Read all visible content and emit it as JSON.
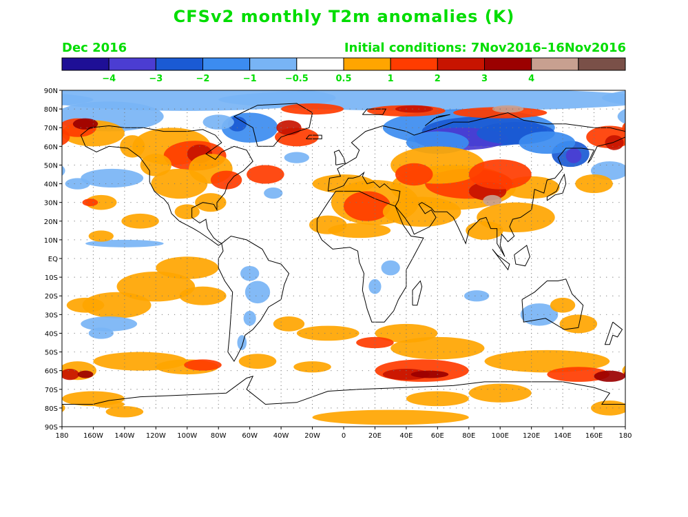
{
  "title": "CFSv2 monthly T2m anomalies (K)",
  "valid_month": "Dec 2016",
  "initial_conditions": "Initial conditions: 7Nov2016–16Nov2016",
  "label_color": "#00dd00",
  "legend": {
    "colors": [
      "#1e0f96",
      "#4b3dd2",
      "#1a5ad4",
      "#3c8cf0",
      "#78b4f5",
      "#ffffff",
      "#ffa500",
      "#ff3c00",
      "#c81400",
      "#9b0000",
      "#c8a090",
      "#7a5048"
    ],
    "labels": [
      "−4",
      "−3",
      "−2",
      "−1",
      "−0.5",
      "0.5",
      "1",
      "2",
      "3",
      "4"
    ]
  },
  "axes": {
    "lat_labels": [
      "90N",
      "80N",
      "70N",
      "60N",
      "50N",
      "40N",
      "30N",
      "20N",
      "10N",
      "EQ",
      "10S",
      "20S",
      "30S",
      "40S",
      "50S",
      "60S",
      "70S",
      "80S",
      "90S"
    ],
    "lon_labels": [
      "180",
      "160W",
      "140W",
      "120W",
      "100W",
      "80W",
      "60W",
      "40W",
      "20W",
      "0",
      "20E",
      "40E",
      "60E",
      "80E",
      "100E",
      "120E",
      "140E",
      "160E",
      "180"
    ]
  }
}
